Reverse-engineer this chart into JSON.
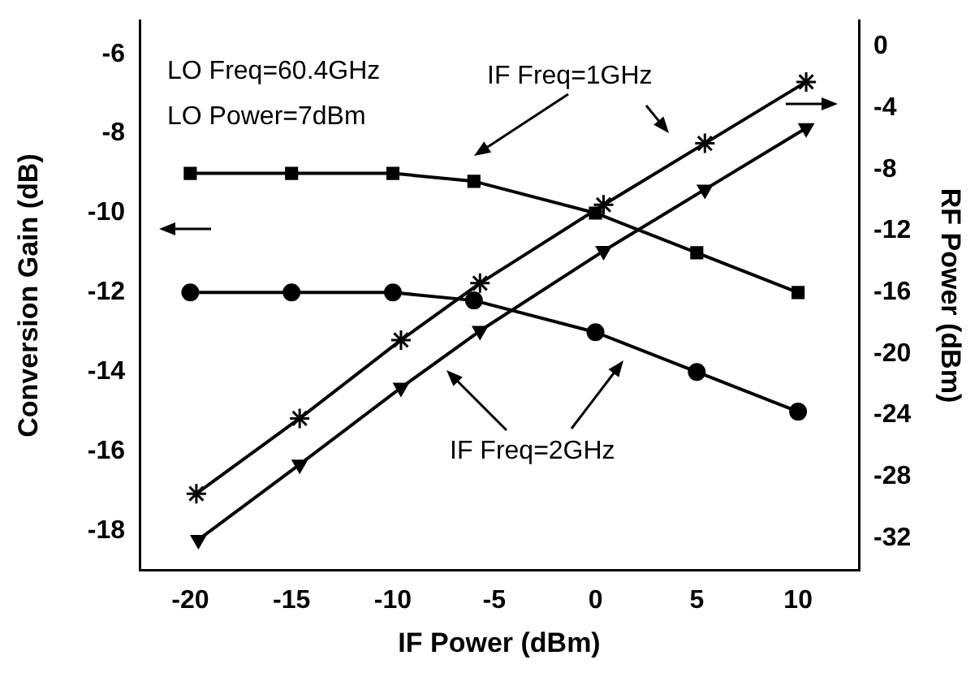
{
  "chart_data": {
    "type": "line",
    "xlabel": "IF Power (dBm)",
    "ylabel": "Conversion Gain (dB)",
    "y2label": "RF Power (dBm)",
    "xlim": [
      -22.5,
      13
    ],
    "xticks": [
      -20,
      -15,
      -10,
      -5,
      0,
      5,
      10
    ],
    "ylim": [
      -19,
      -5.15
    ],
    "yticks": [
      -18,
      -16,
      -14,
      -12,
      -10,
      -8,
      -6
    ],
    "y2lim": [
      -34.1,
      1.7
    ],
    "y2ticks": [
      -32,
      -28,
      -24,
      -20,
      -16,
      -12,
      -8,
      -4,
      0
    ],
    "grid": false,
    "legend": false,
    "line_style": "solid",
    "annotations": [
      "LO Freq=60.4GHz",
      "LO Power=7dBm",
      "IF Freq=1GHz",
      "IF Freq=2GHz"
    ],
    "series": [
      {
        "color": "#000000",
        "marker": "square",
        "axis": "y",
        "x": [
          -20,
          -15,
          -10,
          -6,
          0,
          5,
          10
        ],
        "values": [
          -9,
          -9,
          -9,
          -9.2,
          -10,
          -11,
          -12
        ]
      },
      {
        "color": "#000000",
        "marker": "circle",
        "axis": "y",
        "x": [
          -20,
          -15,
          -10,
          -6,
          0,
          5,
          10
        ],
        "values": [
          -12,
          -12,
          -12,
          -12.2,
          -13,
          -14,
          -15
        ]
      },
      {
        "color": "#000000",
        "marker": "cross",
        "axis": "y2",
        "x": [
          -19.7,
          -14.6,
          -9.6,
          -5.7,
          0.4,
          5.4,
          10.4
        ],
        "values": [
          -29.1,
          -24.2,
          -19.1,
          -15.4,
          -10.3,
          -6.3,
          -2.3
        ]
      },
      {
        "color": "#000000",
        "marker": "triangle",
        "axis": "y2",
        "x": [
          -19.6,
          -14.6,
          -9.6,
          -5.7,
          0.4,
          5.4,
          10.4
        ],
        "values": [
          -32.1,
          -27.2,
          -22.2,
          -18.5,
          -13.3,
          -9.3,
          -5.3
        ]
      }
    ]
  }
}
